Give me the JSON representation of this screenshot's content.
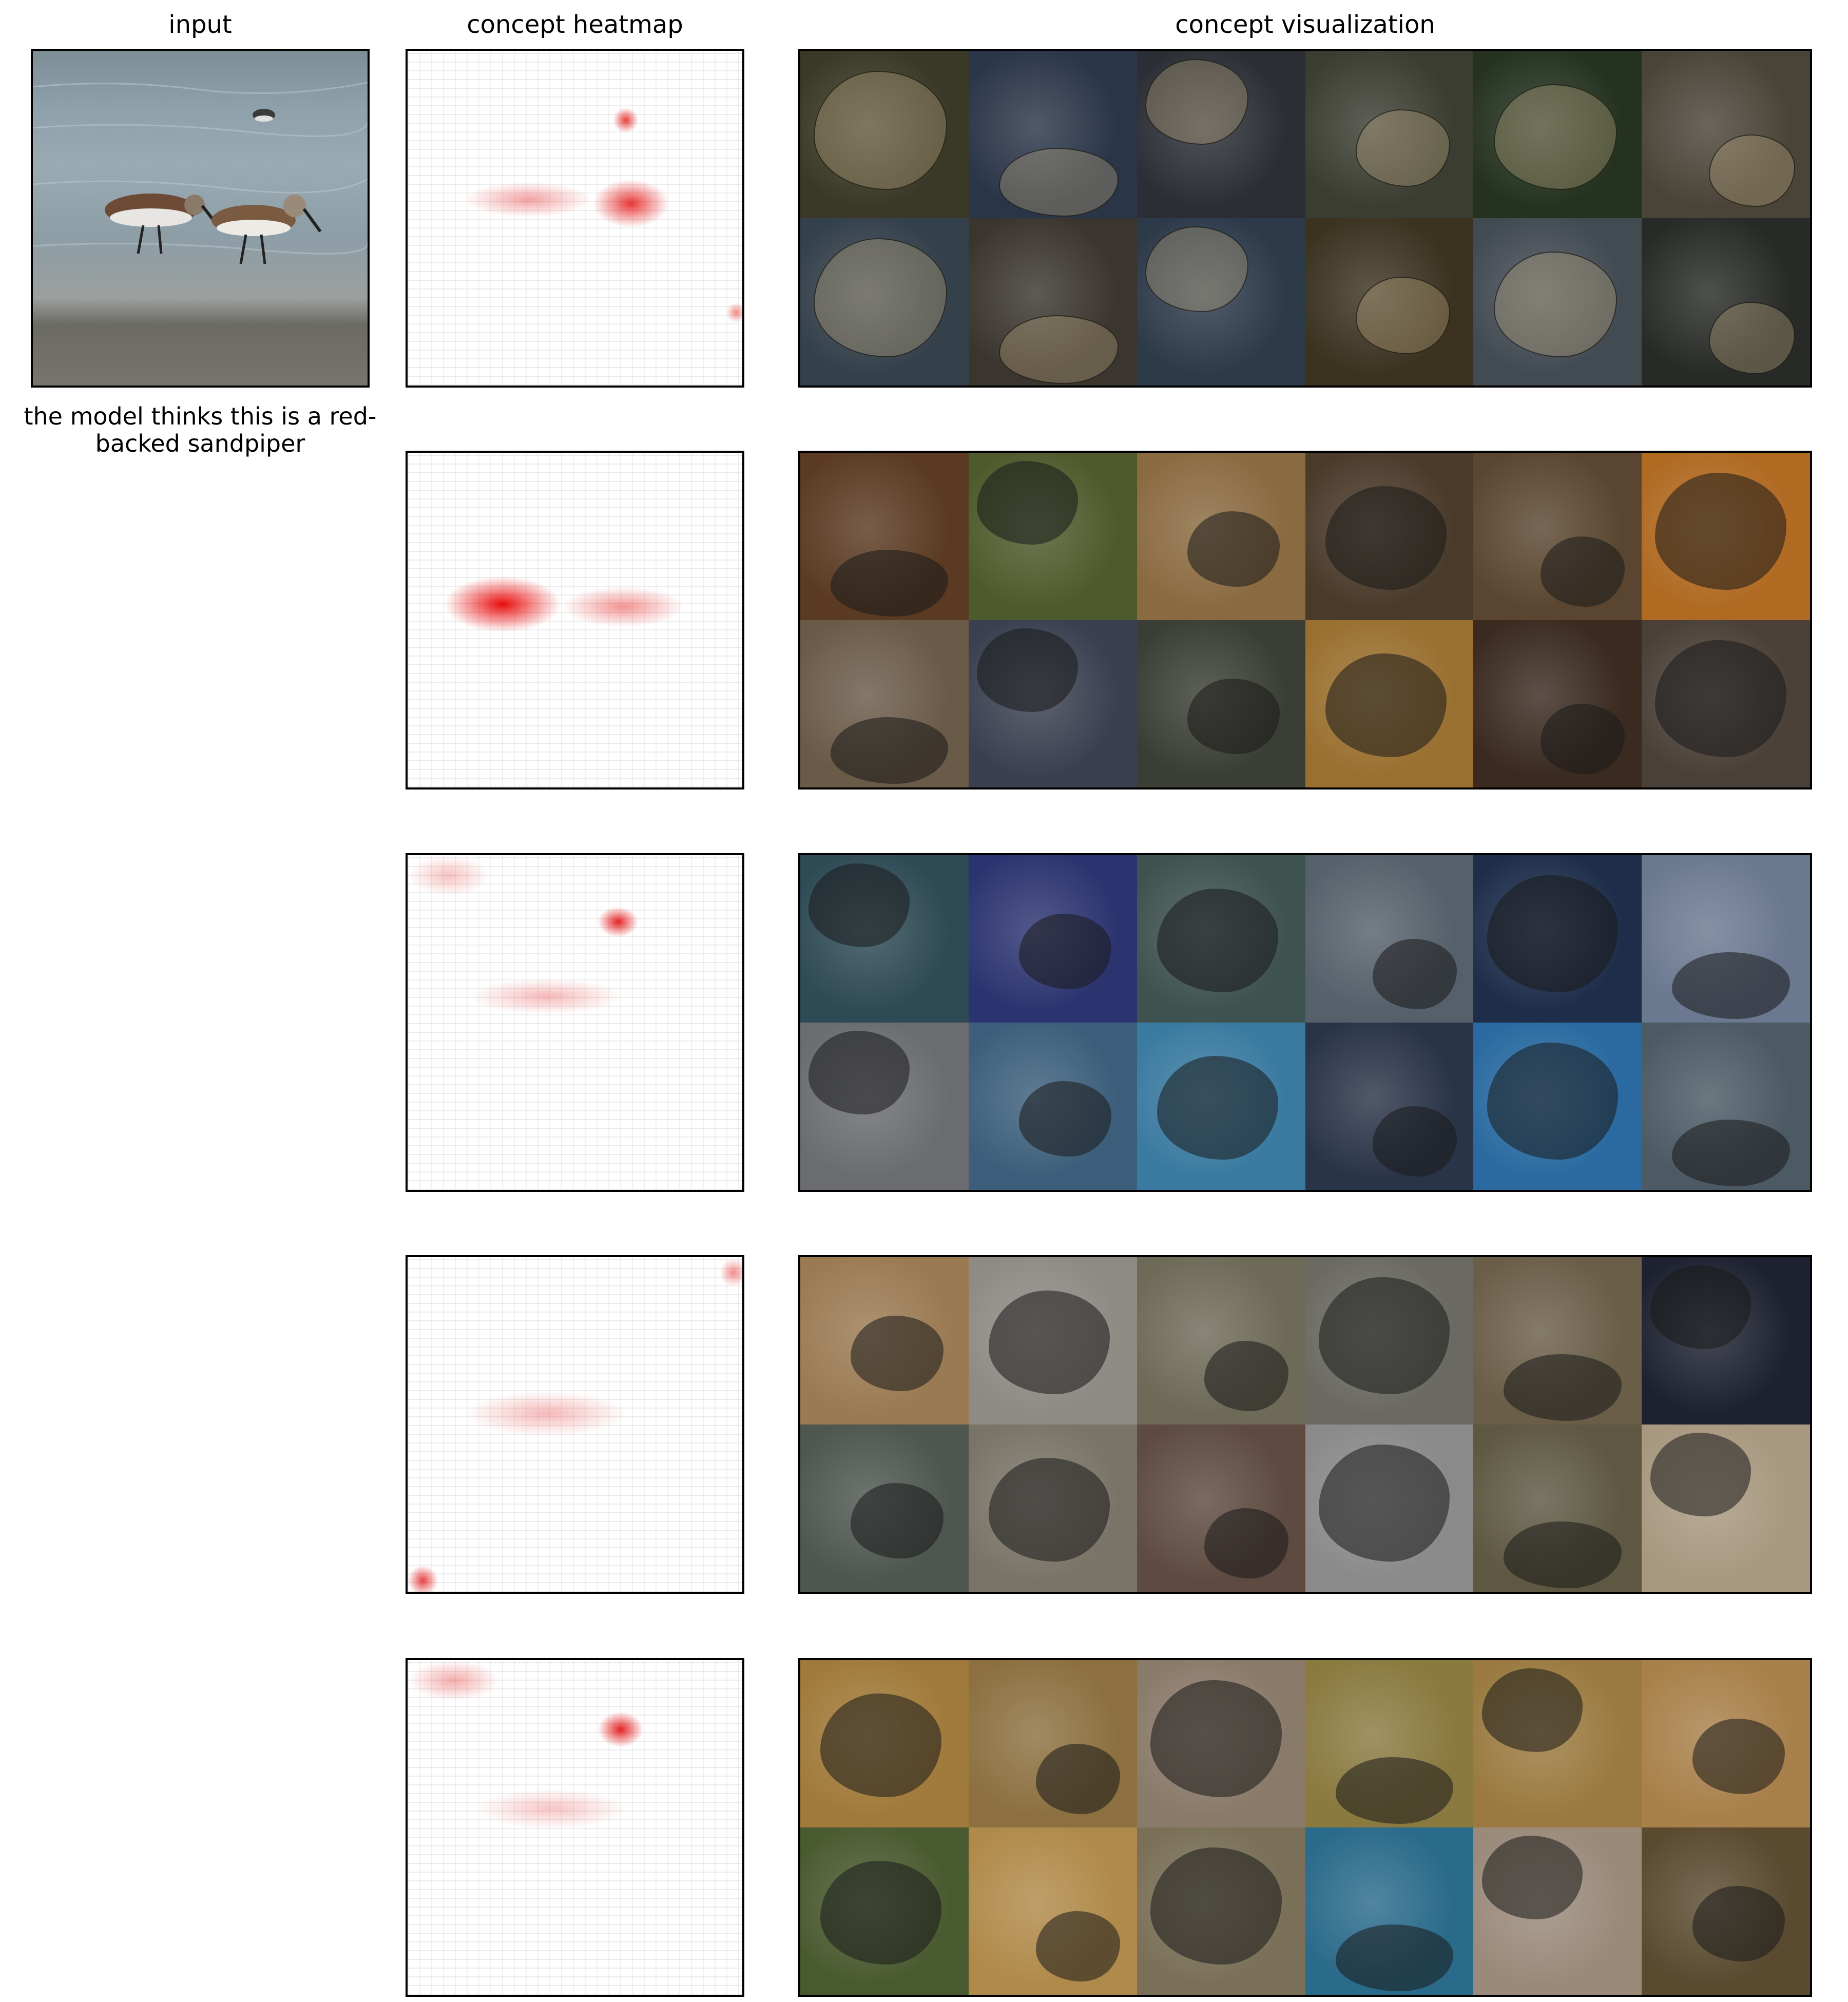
{
  "titles": {
    "input": "input",
    "heatmap": "concept heatmap",
    "visualization": "concept visualization"
  },
  "prediction": "the model thinks this is a red-backed sandpiper",
  "concepts": [
    {
      "rows": [
        [
          "#3a3826",
          "#2a3548",
          "#2b2e35",
          "#3b3d32",
          "#24321f",
          "#4a4438"
        ],
        [
          "#34404a",
          "#3a352e",
          "#2d3a4a",
          "#3b3220",
          "#424a52",
          "#272a26"
        ]
      ]
    },
    {
      "rows": [
        [
          "#5a3a22",
          "#4e5a2c",
          "#8a6a40",
          "#4a3a2a",
          "#5a4630",
          "#b06a22"
        ],
        [
          "#6a5a48",
          "#3a4050",
          "#3a3e34",
          "#9a7030",
          "#3a2a20",
          "#4a4038"
        ]
      ]
    },
    {
      "rows": [
        [
          "#2e4a55",
          "#2c3470",
          "#3e5250",
          "#56606a",
          "#1e2e4a",
          "#6a7890"
        ],
        [
          "#6a6c70",
          "#3c5e7a",
          "#3a7aa0",
          "#2a3448",
          "#2a6aa0",
          "#4c5a64"
        ]
      ]
    },
    {
      "rows": [
        [
          "#9a7a52",
          "#8e8a84",
          "#6e6a58",
          "#6a6a62",
          "#6a5e48",
          "#1e2230"
        ],
        [
          "#4e5650",
          "#7a7468",
          "#5e4a40",
          "#8a8a8a",
          "#5e5842",
          "#a89880"
        ]
      ]
    },
    {
      "rows": [
        [
          "#a07a3a",
          "#8c7040",
          "#8a7a6a",
          "#8a7a40",
          "#9a7a40",
          "#a8804a"
        ],
        [
          "#4a5a30",
          "#b08a4a",
          "#7a7058",
          "#2a6a8a",
          "#9a8a7a",
          "#5a4a30"
        ]
      ]
    }
  ]
}
